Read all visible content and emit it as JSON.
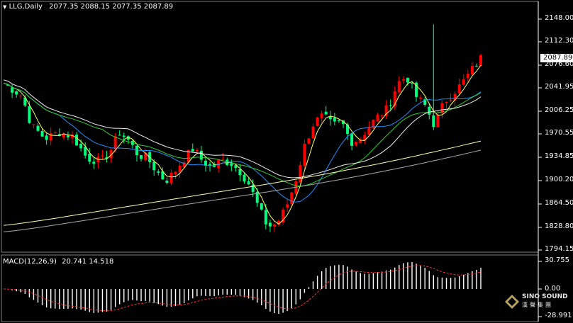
{
  "header": {
    "symbol": "LLG,Daily",
    "ohlc": "2077.35 2088.15 2077.35 2087.89",
    "dropdown_icon": "triangle-down-icon"
  },
  "price_axis": {
    "labels": [
      "2148.00",
      "2112.30",
      "2076.60",
      "2041.95",
      "2006.25",
      "1970.55",
      "1934.85",
      "1900.20",
      "1864.50",
      "1828.80",
      "1794.15"
    ],
    "current_price": "2087.89"
  },
  "macd": {
    "label": "MACD(12,26,9)",
    "values": "20.741 14.518",
    "axis_labels": [
      "30.755",
      "0.00",
      "-28.991"
    ]
  },
  "logo": {
    "brand": "SINO SOUND",
    "brand_cn": "漢聲集團"
  },
  "colors": {
    "background": "#000000",
    "bull_candle": "#ff0000",
    "bear_candle": "#00ff7f",
    "ma_fast": "#ffff66",
    "ma_blue": "#1e90ff",
    "ma_green": "#32cd32",
    "ma_white": "#f0f0f0",
    "ma_long": "#ffffaa",
    "ma_gray": "#a9a9a9",
    "signal": "#ff3030"
  }
}
